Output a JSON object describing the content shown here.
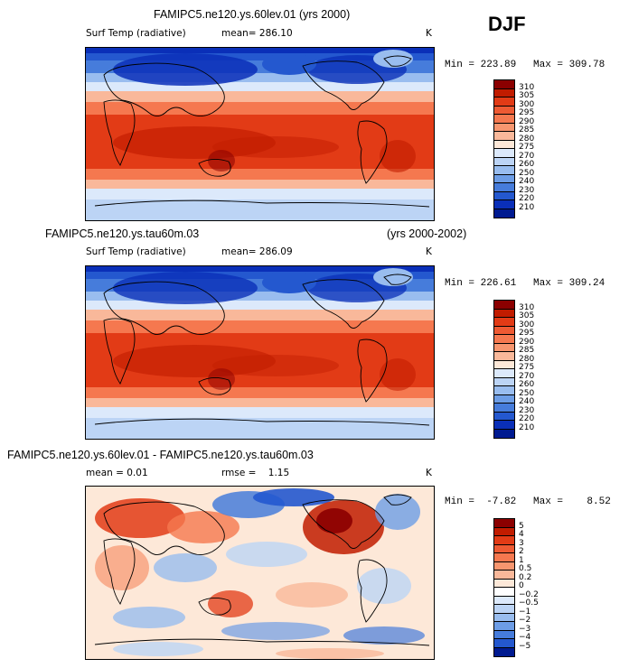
{
  "season": "DJF",
  "panels": [
    {
      "title": "FAMIPC5.ne120.ys.60lev.01 (yrs 2000)",
      "title_right": "",
      "variable": "Surf Temp (radiative)",
      "mean_label": "mean= 286.10",
      "rmse_label": "",
      "units": "K",
      "min_label": "Min = 223.89",
      "max_label": "Max = 309.78",
      "colorbar": {
        "levels": [
          "310",
          "305",
          "300",
          "295",
          "290",
          "285",
          "280",
          "275",
          "270",
          "260",
          "250",
          "240",
          "230",
          "220",
          "210"
        ],
        "colors": [
          "#8b0000",
          "#c11c00",
          "#e23b16",
          "#ee5a33",
          "#f5784f",
          "#f7966f",
          "#f9b89a",
          "#fde8d8",
          "#dce9fb",
          "#bcd4f5",
          "#99bdef",
          "#6d9de6",
          "#467cdb",
          "#2458cf",
          "#0a2fb8",
          "#001a90"
        ]
      },
      "map": {
        "type": "surface-temperature",
        "mean": 286.1,
        "min": 223.89,
        "max": 309.78
      }
    },
    {
      "title": "FAMIPC5.ne120.ys.tau60m.03",
      "title_right": "(yrs 2000-2002)",
      "variable": "Surf Temp (radiative)",
      "mean_label": "mean= 286.09",
      "rmse_label": "",
      "units": "K",
      "min_label": "Min = 226.61",
      "max_label": "Max = 309.24",
      "colorbar": {
        "levels": [
          "310",
          "305",
          "300",
          "295",
          "290",
          "285",
          "280",
          "275",
          "270",
          "260",
          "250",
          "240",
          "230",
          "220",
          "210"
        ],
        "colors": [
          "#8b0000",
          "#c11c00",
          "#e23b16",
          "#ee5a33",
          "#f5784f",
          "#f7966f",
          "#f9b89a",
          "#fde8d8",
          "#dce9fb",
          "#bcd4f5",
          "#99bdef",
          "#6d9de6",
          "#467cdb",
          "#2458cf",
          "#0a2fb8",
          "#001a90"
        ]
      },
      "map": {
        "type": "surface-temperature",
        "mean": 286.09,
        "min": 226.61,
        "max": 309.24
      }
    },
    {
      "title": "FAMIPC5.ne120.ys.60lev.01 - FAMIPC5.ne120.ys.tau60m.03",
      "title_right": "",
      "variable": "",
      "mean_label": "mean =    0.01",
      "rmse_label": "rmse =    1.15",
      "units": "K",
      "min_label": "Min =  -7.82",
      "max_label": "Max =    8.52",
      "colorbar": {
        "levels": [
          "5",
          "4",
          "3",
          "2",
          "1",
          "0.5",
          "0.2",
          "0",
          "−0.2",
          "−0.5",
          "−1",
          "−2",
          "−3",
          "−4",
          "−5"
        ],
        "colors": [
          "#8b0000",
          "#c11c00",
          "#e23b16",
          "#ee5a33",
          "#f5784f",
          "#f7966f",
          "#f9b89a",
          "#fde8d8",
          "#ffffff",
          "#dce9fb",
          "#bcd4f5",
          "#99bdef",
          "#6d9de6",
          "#467cdb",
          "#2458cf",
          "#001a90"
        ]
      },
      "map": {
        "type": "difference",
        "mean": 0.01,
        "rmse": 1.15,
        "min": -7.82,
        "max": 8.52
      }
    }
  ],
  "chart_data": [
    {
      "type": "heatmap",
      "title": "FAMIPC5.ne120.ys.60lev.01 (yrs 2000)",
      "variable": "Surf Temp (radiative)",
      "units": "K",
      "season": "DJF",
      "mean": 286.1,
      "min": 223.89,
      "max": 309.78,
      "contour_levels": [
        210,
        220,
        230,
        240,
        250,
        260,
        270,
        275,
        280,
        285,
        290,
        295,
        300,
        305,
        310
      ]
    },
    {
      "type": "heatmap",
      "title": "FAMIPC5.ne120.ys.tau60m.03 (yrs 2000-2002)",
      "variable": "Surf Temp (radiative)",
      "units": "K",
      "season": "DJF",
      "mean": 286.09,
      "min": 226.61,
      "max": 309.24,
      "contour_levels": [
        210,
        220,
        230,
        240,
        250,
        260,
        270,
        275,
        280,
        285,
        290,
        295,
        300,
        305,
        310
      ]
    },
    {
      "type": "heatmap",
      "title": "FAMIPC5.ne120.ys.60lev.01 - FAMIPC5.ne120.ys.tau60m.03",
      "units": "K",
      "season": "DJF",
      "mean": 0.01,
      "rmse": 1.15,
      "min": -7.82,
      "max": 8.52,
      "contour_levels": [
        -5,
        -4,
        -3,
        -2,
        -1,
        -0.5,
        -0.2,
        0,
        0.2,
        0.5,
        1,
        2,
        3,
        4,
        5
      ]
    }
  ]
}
